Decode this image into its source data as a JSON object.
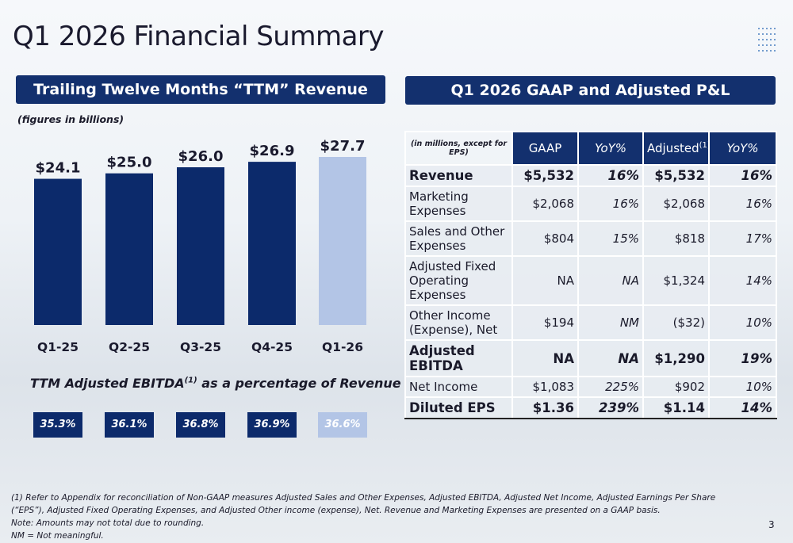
{
  "title": "Q1 2026 Financial Summary",
  "chart_data": {
    "type": "bar",
    "title": "Trailing Twelve Months “TTM” Revenue",
    "subtitle": "(figures in billions)",
    "categories": [
      "Q1-25",
      "Q2-25",
      "Q3-25",
      "Q4-25",
      "Q1-26"
    ],
    "values": [
      24.1,
      25.0,
      26.0,
      26.9,
      27.7
    ],
    "value_labels": [
      "$24.1",
      "$25.0",
      "$26.0",
      "$26.9",
      "$27.7"
    ],
    "colors": [
      "#0c2a6b",
      "#0c2a6b",
      "#0c2a6b",
      "#0c2a6b",
      "#b3c5e6"
    ]
  },
  "ebitda": {
    "title": "TTM Adjusted EBITDA",
    "title_sup": "(1)",
    "title_end": "as a percentage of Revenue",
    "values": [
      "35.3%",
      "36.1%",
      "36.8%",
      "36.9%",
      "36.6%"
    ]
  },
  "table": {
    "title": "Q1 2026 GAAP and Adjusted P&L",
    "header": [
      "(in millions, except for EPS)",
      "GAAP",
      "YoY%",
      "Adjusted",
      "YoY%"
    ],
    "header_sup": "(1)",
    "rows": [
      {
        "cells": [
          "Revenue",
          "$5,532",
          "16%",
          "$5,532",
          "16%"
        ],
        "bold": true
      },
      {
        "cells": [
          "Marketing Expenses",
          "$2,068",
          "16%",
          "$2,068",
          "16%"
        ],
        "bold": false
      },
      {
        "cells": [
          "Sales and Other Expenses",
          "$804",
          "15%",
          "$818",
          "17%"
        ],
        "bold": false
      },
      {
        "cells": [
          "Adjusted Fixed Operating Expenses",
          "NA",
          "NA",
          "$1,324",
          "14%"
        ],
        "bold": false
      },
      {
        "cells": [
          "Other Income (Expense), Net",
          "$194",
          "NM",
          "($32)",
          "10%"
        ],
        "bold": false
      },
      {
        "cells": [
          "Adjusted EBITDA",
          "NA",
          "NA",
          "$1,290",
          "19%"
        ],
        "bold": true
      },
      {
        "cells": [
          "Net Income",
          "$1,083",
          "225%",
          "$902",
          "10%"
        ],
        "bold": false
      },
      {
        "cells": [
          "Diluted EPS",
          "$1.36",
          "239%",
          "$1.14",
          "14%"
        ],
        "bold": true
      }
    ]
  },
  "footnotes": [
    "(1) Refer to Appendix for reconciliation of Non-GAAP measures Adjusted Sales and Other Expenses, Adjusted EBITDA, Adjusted Net Income, Adjusted Earnings Per Share (“EPS”), Adjusted Fixed Operating Expenses, and Adjusted Other income (expense), Net. Revenue and Marketing Expenses are presented on a GAAP basis.",
    "Note: Amounts may not total due to rounding.",
    "NM = Not meaningful."
  ],
  "page_number": "3"
}
